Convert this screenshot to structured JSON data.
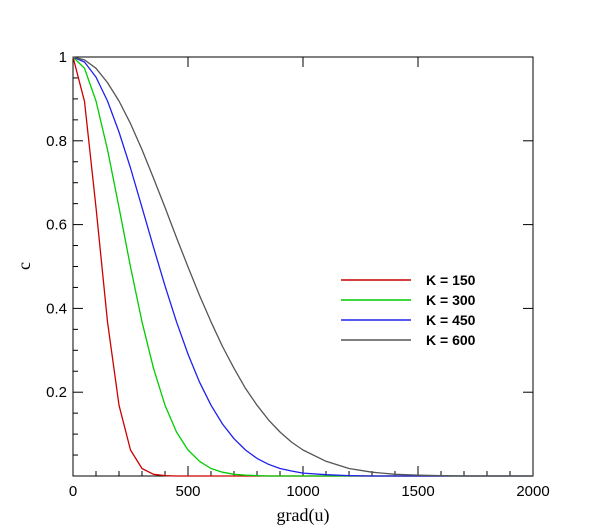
{
  "chart_data": {
    "type": "line",
    "xlabel": "grad(u)",
    "ylabel": "c",
    "xlim": [
      0,
      2000
    ],
    "ylim": [
      0,
      1
    ],
    "x_ticks": [
      "0",
      "500",
      "1000",
      "1500",
      "2000"
    ],
    "y_ticks": [
      "0.2",
      "0.4",
      "0.6",
      "0.8",
      "1"
    ],
    "grid": false,
    "legend_position": "right-center",
    "x": [
      0,
      50,
      100,
      150,
      200,
      250,
      300,
      350,
      400,
      450,
      500,
      550,
      600,
      650,
      700,
      750,
      800,
      850,
      900,
      950,
      1000,
      1100,
      1200,
      1300,
      1400,
      1500,
      1600,
      1700,
      1800,
      1900,
      2000
    ],
    "series": [
      {
        "name": "K = 150",
        "color": "#cc0000",
        "values": [
          1.0,
          0.894,
          0.641,
          0.368,
          0.169,
          0.062,
          0.018,
          0.004,
          0.001,
          0.0,
          0.0,
          0.0,
          0.0,
          0.0,
          0.0,
          0.0,
          0.0,
          0.0,
          0.0,
          0.0,
          0.0,
          0.0,
          0.0,
          0.0,
          0.0,
          0.0,
          0.0,
          0.0,
          0.0,
          0.0,
          0.0
        ]
      },
      {
        "name": "K = 300",
        "color": "#00cc00",
        "values": [
          1.0,
          0.973,
          0.895,
          0.779,
          0.641,
          0.499,
          0.368,
          0.257,
          0.169,
          0.105,
          0.062,
          0.035,
          0.018,
          0.009,
          0.004,
          0.002,
          0.001,
          0.0,
          0.0,
          0.0,
          0.0,
          0.0,
          0.0,
          0.0,
          0.0,
          0.0,
          0.0,
          0.0,
          0.0,
          0.0,
          0.0
        ]
      },
      {
        "name": "K = 450",
        "color": "#2020ee",
        "values": [
          1.0,
          0.988,
          0.952,
          0.895,
          0.821,
          0.735,
          0.641,
          0.546,
          0.454,
          0.368,
          0.291,
          0.224,
          0.169,
          0.124,
          0.089,
          0.062,
          0.042,
          0.028,
          0.018,
          0.012,
          0.007,
          0.003,
          0.001,
          0.0,
          0.0,
          0.0,
          0.0,
          0.0,
          0.0,
          0.0,
          0.0
        ]
      },
      {
        "name": "K = 600",
        "color": "#555555",
        "values": [
          1.0,
          0.993,
          0.973,
          0.939,
          0.895,
          0.841,
          0.779,
          0.711,
          0.641,
          0.569,
          0.499,
          0.431,
          0.368,
          0.309,
          0.257,
          0.209,
          0.169,
          0.134,
          0.105,
          0.081,
          0.062,
          0.035,
          0.018,
          0.009,
          0.004,
          0.002,
          0.001,
          0.0,
          0.0,
          0.0,
          0.0
        ]
      }
    ]
  }
}
